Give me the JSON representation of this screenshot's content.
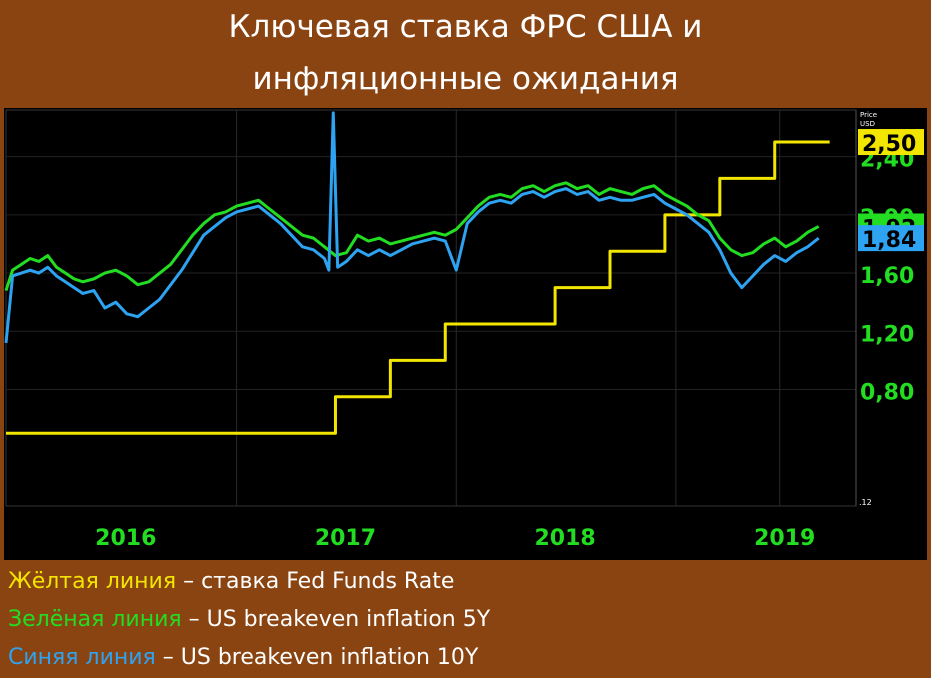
{
  "title": {
    "line1": "Ключевая ставка ФРС США и",
    "line2": "инфляционные ожидания"
  },
  "chart_data": {
    "type": "line",
    "y_axis_header_1": "Price",
    "y_axis_header_2": "USD",
    "ylim": [
      0.0,
      2.72
    ],
    "yticks": [
      {
        "value": 2.4,
        "label": "2,40"
      },
      {
        "value": 2.0,
        "label": "2,00"
      },
      {
        "value": 1.6,
        "label": "1,60"
      },
      {
        "value": 1.2,
        "label": "1,20"
      },
      {
        "value": 0.8,
        "label": "0,80"
      }
    ],
    "y_bottom_label": ".12",
    "xlim": [
      2015.45,
      2019.32
    ],
    "xticks": [
      {
        "value": 2016.0,
        "label": "2016"
      },
      {
        "value": 2017.0,
        "label": "2017"
      },
      {
        "value": 2018.0,
        "label": "2018"
      },
      {
        "value": 2019.0,
        "label": "2019"
      }
    ],
    "grid": true,
    "series": [
      {
        "name": "Fed Funds Rate",
        "color": "#f2e600",
        "step": true,
        "x": [
          2015.45,
          2015.95,
          2016.95,
          2017.2,
          2017.45,
          2017.95,
          2018.2,
          2018.45,
          2018.7,
          2018.95,
          2019.2
        ],
        "values": [
          0.5,
          0.5,
          0.75,
          1.0,
          1.25,
          1.5,
          1.75,
          2.0,
          2.25,
          2.5,
          2.5
        ]
      },
      {
        "name": "US breakeven inflation 5Y",
        "color": "#22dd22",
        "x": [
          2015.45,
          2015.48,
          2015.52,
          2015.56,
          2015.6,
          2015.64,
          2015.68,
          2015.72,
          2015.76,
          2015.8,
          2015.85,
          2015.9,
          2015.95,
          2016.0,
          2016.05,
          2016.1,
          2016.15,
          2016.2,
          2016.25,
          2016.3,
          2016.35,
          2016.4,
          2016.45,
          2016.5,
          2016.55,
          2016.6,
          2016.65,
          2016.7,
          2016.75,
          2016.8,
          2016.85,
          2016.9,
          2016.95,
          2017.0,
          2017.05,
          2017.1,
          2017.15,
          2017.2,
          2017.25,
          2017.3,
          2017.35,
          2017.4,
          2017.45,
          2017.5,
          2017.55,
          2017.6,
          2017.65,
          2017.7,
          2017.75,
          2017.8,
          2017.85,
          2017.9,
          2017.95,
          2018.0,
          2018.05,
          2018.1,
          2018.15,
          2018.2,
          2018.25,
          2018.3,
          2018.35,
          2018.4,
          2018.45,
          2018.5,
          2018.55,
          2018.6,
          2018.65,
          2018.7,
          2018.75,
          2018.8,
          2018.85,
          2018.9,
          2018.95,
          2019.0,
          2019.05,
          2019.1,
          2019.15
        ],
        "values": [
          1.48,
          1.62,
          1.66,
          1.7,
          1.68,
          1.72,
          1.64,
          1.6,
          1.56,
          1.54,
          1.56,
          1.6,
          1.62,
          1.58,
          1.52,
          1.54,
          1.6,
          1.66,
          1.76,
          1.86,
          1.94,
          2.0,
          2.02,
          2.06,
          2.08,
          2.1,
          2.04,
          1.98,
          1.92,
          1.86,
          1.84,
          1.78,
          1.72,
          1.74,
          1.86,
          1.82,
          1.84,
          1.8,
          1.82,
          1.84,
          1.86,
          1.88,
          1.86,
          1.9,
          1.98,
          2.06,
          2.12,
          2.14,
          2.12,
          2.18,
          2.2,
          2.16,
          2.2,
          2.22,
          2.18,
          2.2,
          2.14,
          2.18,
          2.16,
          2.14,
          2.18,
          2.2,
          2.14,
          2.1,
          2.06,
          2.0,
          1.96,
          1.84,
          1.76,
          1.72,
          1.74,
          1.8,
          1.84,
          1.78,
          1.82,
          1.88,
          1.92
        ]
      },
      {
        "name": "US breakeven inflation 10Y",
        "color": "#2ea3f2",
        "x": [
          2015.45,
          2015.48,
          2015.52,
          2015.56,
          2015.6,
          2015.64,
          2015.68,
          2015.72,
          2015.76,
          2015.8,
          2015.85,
          2015.9,
          2015.95,
          2016.0,
          2016.05,
          2016.1,
          2016.15,
          2016.2,
          2016.25,
          2016.3,
          2016.35,
          2016.4,
          2016.45,
          2016.5,
          2016.55,
          2016.6,
          2016.65,
          2016.7,
          2016.75,
          2016.8,
          2016.85,
          2016.9,
          2016.92,
          2016.94,
          2016.96,
          2016.98,
          2017.0,
          2017.05,
          2017.1,
          2017.15,
          2017.2,
          2017.25,
          2017.3,
          2017.35,
          2017.4,
          2017.45,
          2017.5,
          2017.55,
          2017.6,
          2017.65,
          2017.7,
          2017.75,
          2017.8,
          2017.85,
          2017.9,
          2017.95,
          2018.0,
          2018.05,
          2018.1,
          2018.15,
          2018.2,
          2018.25,
          2018.3,
          2018.35,
          2018.4,
          2018.45,
          2018.5,
          2018.55,
          2018.6,
          2018.65,
          2018.7,
          2018.75,
          2018.8,
          2018.85,
          2018.9,
          2018.95,
          2019.0,
          2019.05,
          2019.1,
          2019.15
        ],
        "values": [
          1.12,
          1.58,
          1.6,
          1.62,
          1.6,
          1.64,
          1.58,
          1.54,
          1.5,
          1.46,
          1.48,
          1.36,
          1.4,
          1.32,
          1.3,
          1.36,
          1.42,
          1.52,
          1.62,
          1.74,
          1.86,
          1.92,
          1.98,
          2.02,
          2.04,
          2.06,
          2.0,
          1.94,
          1.86,
          1.78,
          1.76,
          1.7,
          1.62,
          2.7,
          1.64,
          1.66,
          1.68,
          1.76,
          1.72,
          1.76,
          1.72,
          1.76,
          1.8,
          1.82,
          1.84,
          1.82,
          1.62,
          1.94,
          2.02,
          2.08,
          2.1,
          2.08,
          2.14,
          2.16,
          2.12,
          2.16,
          2.18,
          2.14,
          2.16,
          2.1,
          2.12,
          2.1,
          2.1,
          2.12,
          2.14,
          2.08,
          2.04,
          2.0,
          1.94,
          1.88,
          1.76,
          1.6,
          1.5,
          1.58,
          1.66,
          1.72,
          1.68,
          1.74,
          1.78,
          1.84
        ]
      }
    ],
    "last_value_labels": [
      {
        "label": "2,50",
        "value": 2.5,
        "bg": "#f2e600",
        "color": "#000000"
      },
      {
        "label": "1,92",
        "value": 1.92,
        "bg": "#22dd22",
        "color": "#000000"
      },
      {
        "label": "1,84",
        "value": 1.84,
        "bg": "#2ea3f2",
        "color": "#000000"
      }
    ]
  },
  "legend": [
    {
      "colored": "Жёлтая линия",
      "rest": " – ставка Fed Funds Rate",
      "color": "#f2e600"
    },
    {
      "colored": "Зелёная линия",
      "rest": " – US breakeven inflation 5Y",
      "color": "#22dd22"
    },
    {
      "colored": "Синяя линия",
      "rest": " – US breakeven inflation 10Y",
      "color": "#2ea3f2"
    }
  ]
}
